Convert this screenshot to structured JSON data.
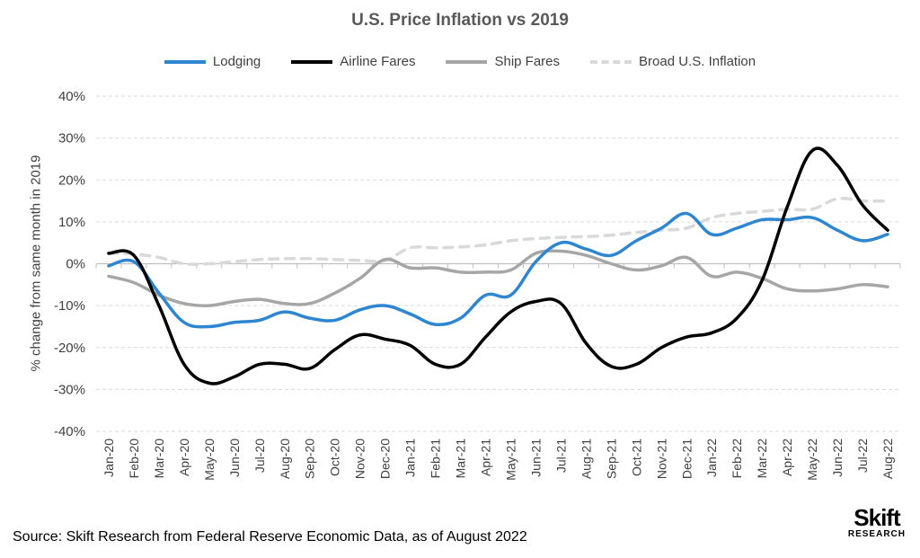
{
  "chart_data": {
    "type": "line",
    "title": "U.S. Price Inflation vs 2019",
    "ylabel": "% change from same month in 2019",
    "xlabel": "",
    "ylim": [
      -40,
      40
    ],
    "ytick_values": [
      -40,
      -30,
      -20,
      -10,
      0,
      10,
      20,
      30,
      40
    ],
    "ytick_labels": [
      "-40%",
      "-30%",
      "-20%",
      "-10%",
      "0%",
      "10%",
      "20%",
      "30%",
      "40%"
    ],
    "grid": "horizontal dashed",
    "legend_position": "top",
    "x": [
      "Jan-20",
      "Feb-20",
      "Mar-20",
      "Apr-20",
      "May-20",
      "Jun-20",
      "Jul-20",
      "Aug-20",
      "Sep-20",
      "Oct-20",
      "Nov-20",
      "Dec-20",
      "Jan-21",
      "Feb-21",
      "Mar-21",
      "Apr-21",
      "May-21",
      "Jun-21",
      "Jul-21",
      "Aug-21",
      "Sep-21",
      "Oct-21",
      "Nov-21",
      "Dec-21",
      "Jan-22",
      "Feb-22",
      "Mar-22",
      "Apr-22",
      "May-22",
      "Jun-22",
      "Jul-22",
      "Aug-22"
    ],
    "series": [
      {
        "name": "Lodging",
        "color": "#2f86d0",
        "dashed": false,
        "values": [
          -0.5,
          0.5,
          -7,
          -14,
          -15,
          -14,
          -13.5,
          -11.5,
          -13,
          -13.5,
          -11,
          -10,
          -12,
          -14.5,
          -13,
          -7.5,
          -7.5,
          0.5,
          5,
          3.5,
          2,
          5.5,
          8.5,
          12,
          7,
          8.5,
          10.5,
          10.5,
          11,
          8,
          5.5,
          7
        ]
      },
      {
        "name": "Airline Fares",
        "color": "#000000",
        "dashed": false,
        "values": [
          2.5,
          2,
          -10,
          -24,
          -28.5,
          -27,
          -24,
          -24,
          -25,
          -20.5,
          -17,
          -18,
          -19.5,
          -24,
          -24,
          -17.5,
          -11.5,
          -9,
          -9.5,
          -19,
          -24.5,
          -24,
          -20,
          -17.5,
          -16.5,
          -13,
          -4,
          13.5,
          27,
          23.5,
          14,
          8
        ]
      },
      {
        "name": "Ship Fares",
        "color": "#a6a6a6",
        "dashed": false,
        "values": [
          -3,
          -4.5,
          -7.5,
          -9.5,
          -10,
          -9,
          -8.5,
          -9.5,
          -9.5,
          -7,
          -3.5,
          1,
          -1,
          -1,
          -2,
          -2,
          -1.5,
          2.5,
          3,
          2,
          0,
          -1.5,
          -0.5,
          1.5,
          -3,
          -2,
          -3.5,
          -6,
          -6.5,
          -6,
          -5,
          -5.5
        ]
      },
      {
        "name": "Broad U.S. Inflation",
        "color": "#d9d9d9",
        "dashed": true,
        "values": [
          2.5,
          2.3,
          1.5,
          0,
          0,
          0.5,
          1,
          1.2,
          1.2,
          1,
          0.8,
          0.8,
          3.8,
          3.8,
          4,
          4.5,
          5.5,
          6,
          6.3,
          6.5,
          6.8,
          7.5,
          8,
          8.5,
          11,
          12,
          12.5,
          13,
          13,
          15.5,
          15,
          15
        ]
      }
    ]
  },
  "source": "Source: Skift Research from Federal Reserve Economic Data, as of August 2022",
  "logo": {
    "main": "Skift",
    "sub": "RESEARCH"
  }
}
